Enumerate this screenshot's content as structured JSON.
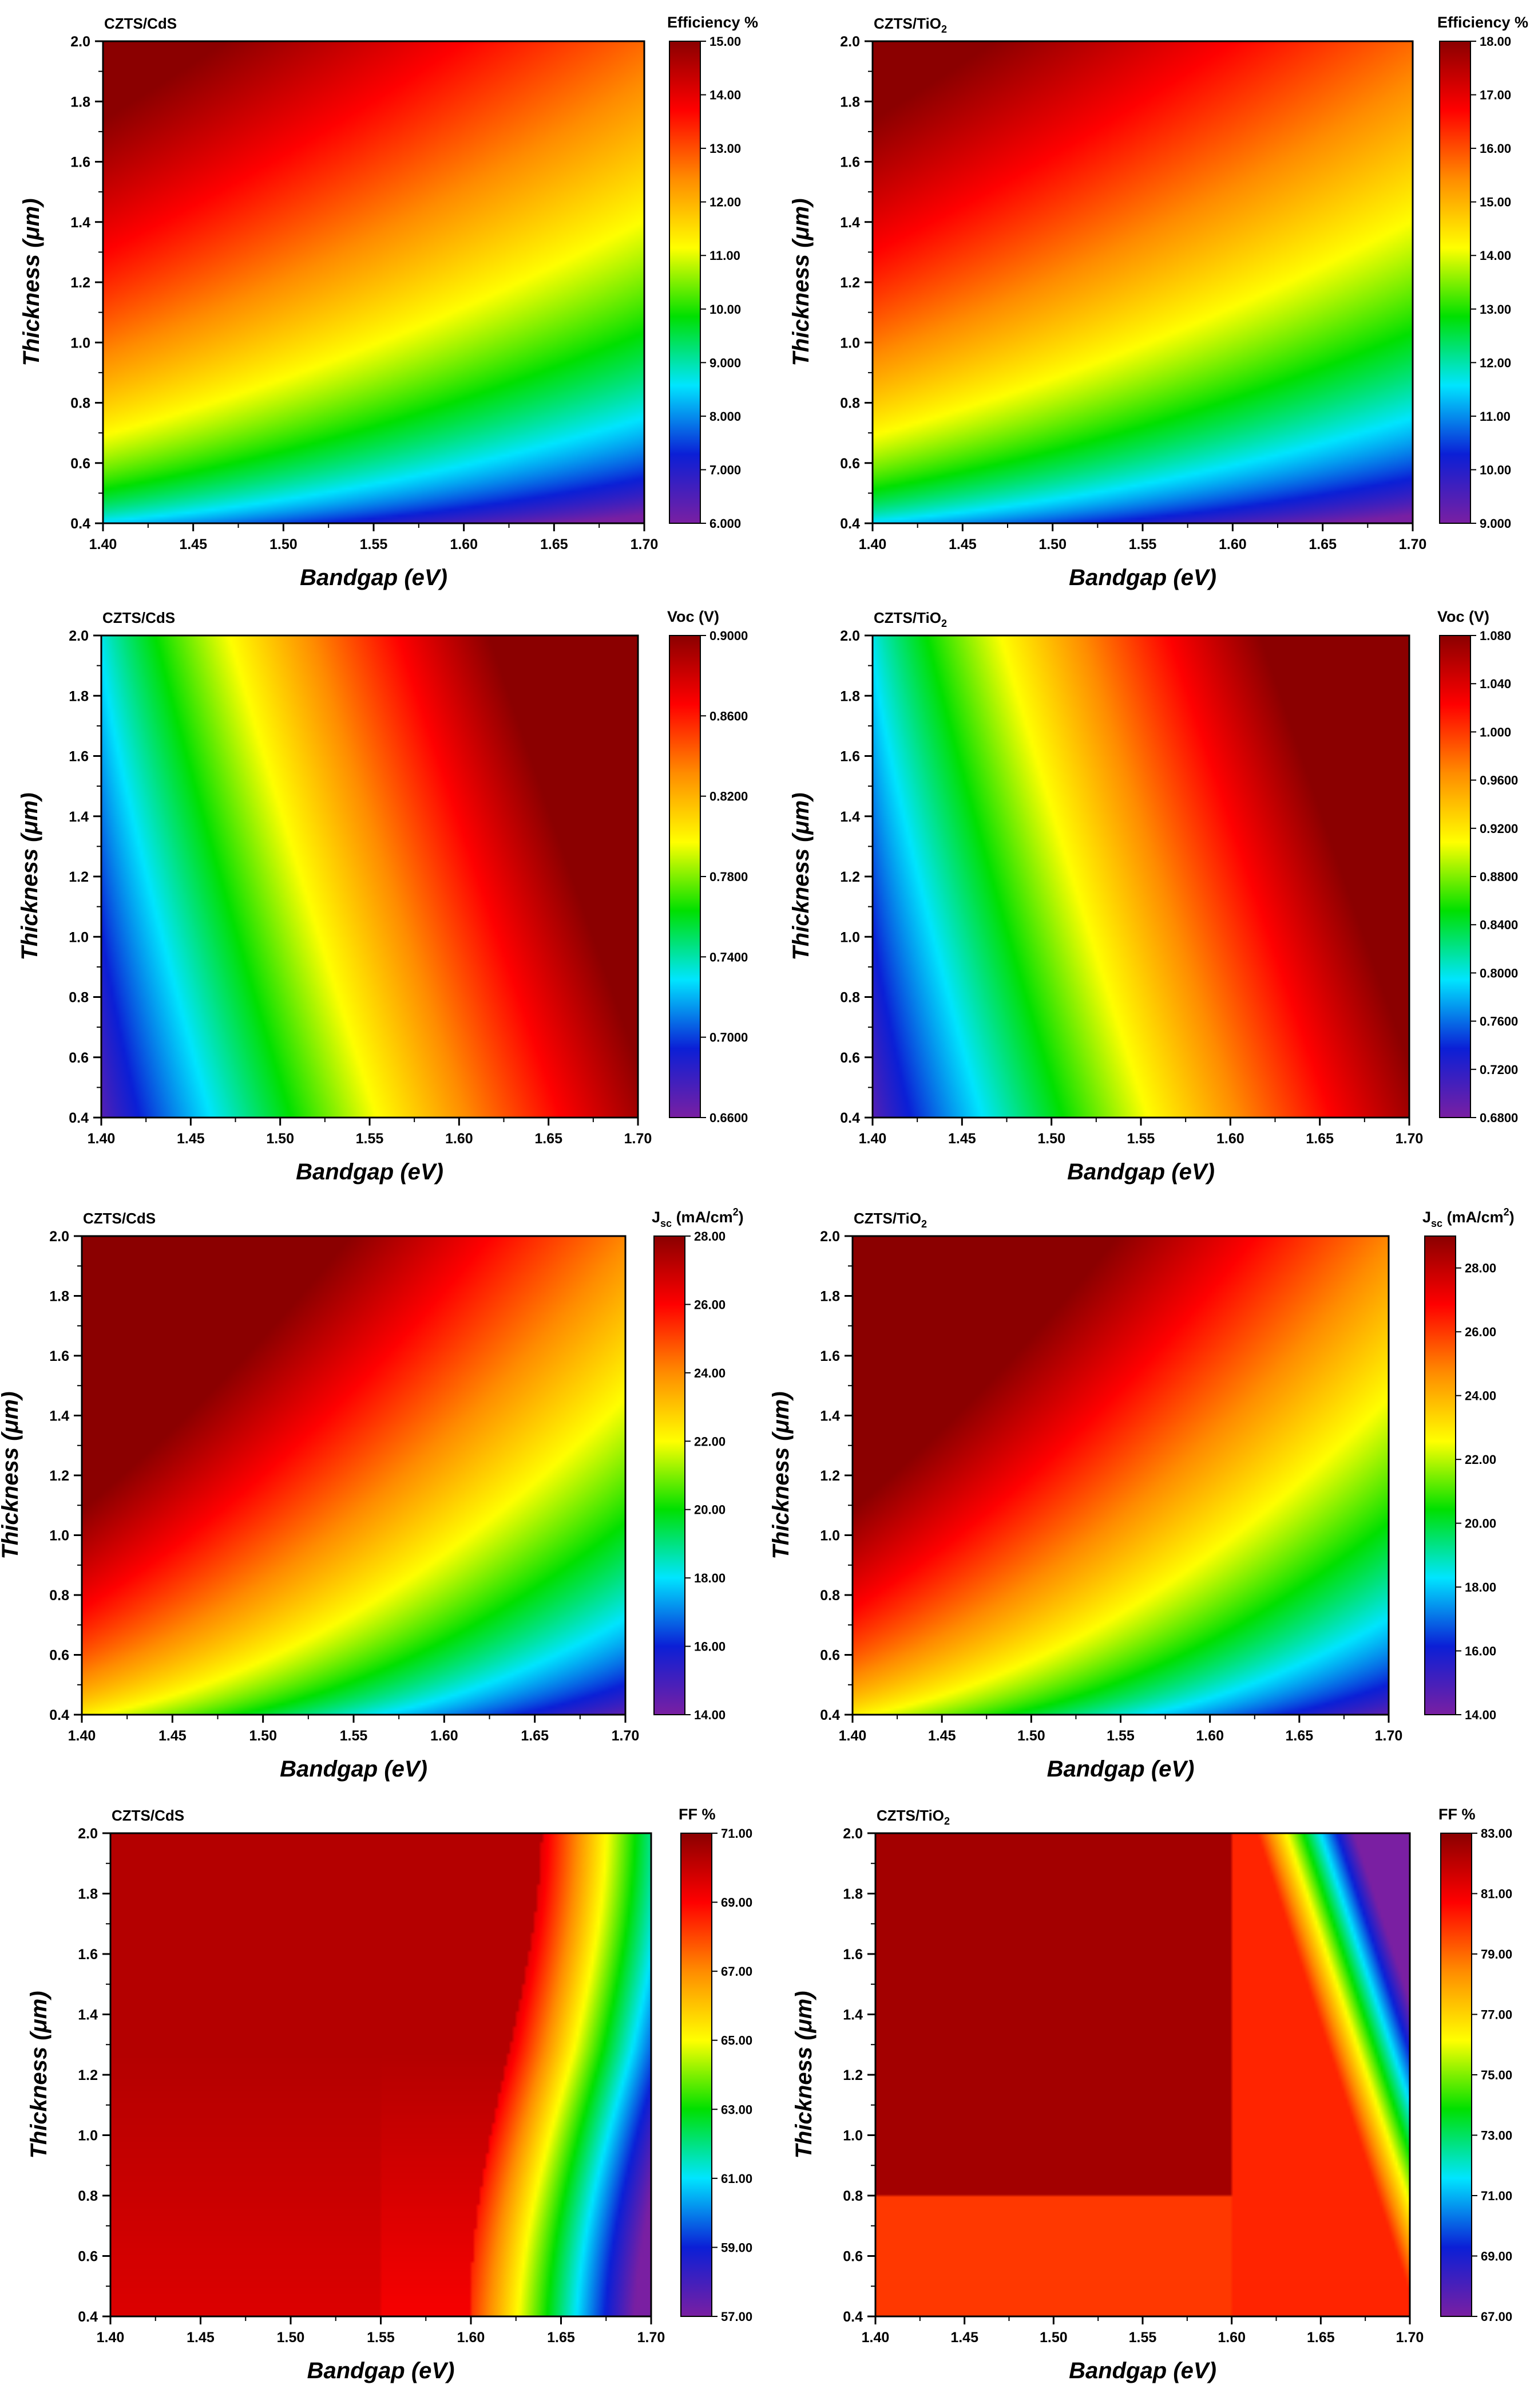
{
  "figure": {
    "colormap": [
      "#7a1fa2",
      "#0b1fd6",
      "#00e5ff",
      "#00e000",
      "#ffff00",
      "#ff8c00",
      "#ff0000",
      "#8b0000"
    ]
  },
  "chart_data": [
    {
      "type": "heatmap",
      "title": "CZTS/CdS",
      "title_sub": "",
      "xlabel": "Bandgap (eV)",
      "ylabel": "Thickness (μm)",
      "x_range": [
        1.4,
        1.7
      ],
      "y_range": [
        0.4,
        2.0
      ],
      "x_ticks": [
        "1.40",
        "1.45",
        "1.50",
        "1.55",
        "1.60",
        "1.65",
        "1.70"
      ],
      "y_ticks": [
        "0.4",
        "0.6",
        "0.8",
        "1.0",
        "1.2",
        "1.4",
        "1.6",
        "1.8",
        "2.0"
      ],
      "colorbar": {
        "title": "Efficiency %",
        "sub": "",
        "sup": "",
        "range": [
          6.0,
          15.0
        ],
        "ticks": [
          "6.000",
          "7.000",
          "8.000",
          "9.000",
          "10.00",
          "11.00",
          "12.00",
          "13.00",
          "14.00",
          "15.00"
        ]
      },
      "field": "eff"
    },
    {
      "type": "heatmap",
      "title": "CZTS/TiO",
      "title_sub": "2",
      "xlabel": "Bandgap (eV)",
      "ylabel": "Thickness (μm)",
      "x_range": [
        1.4,
        1.7
      ],
      "y_range": [
        0.4,
        2.0
      ],
      "x_ticks": [
        "1.40",
        "1.45",
        "1.50",
        "1.55",
        "1.60",
        "1.65",
        "1.70"
      ],
      "y_ticks": [
        "0.4",
        "0.6",
        "0.8",
        "1.0",
        "1.2",
        "1.4",
        "1.6",
        "1.8",
        "2.0"
      ],
      "colorbar": {
        "title": "Efficiency %",
        "sub": "",
        "sup": "",
        "range": [
          9.0,
          18.0
        ],
        "ticks": [
          "9.000",
          "10.00",
          "11.00",
          "12.00",
          "13.00",
          "14.00",
          "15.00",
          "16.00",
          "17.00",
          "18.00"
        ]
      },
      "field": "eff"
    },
    {
      "type": "heatmap",
      "title": "CZTS/CdS",
      "title_sub": "",
      "xlabel": "Bandgap (eV)",
      "ylabel": "Thickness (μm)",
      "x_range": [
        1.4,
        1.7
      ],
      "y_range": [
        0.4,
        2.0
      ],
      "x_ticks": [
        "1.40",
        "1.45",
        "1.50",
        "1.55",
        "1.60",
        "1.65",
        "1.70"
      ],
      "y_ticks": [
        "0.4",
        "0.6",
        "0.8",
        "1.0",
        "1.2",
        "1.4",
        "1.6",
        "1.8",
        "2.0"
      ],
      "colorbar": {
        "title": "Voc (V)",
        "sub": "",
        "sup": "",
        "range": [
          0.66,
          0.9
        ],
        "ticks": [
          "0.6600",
          "0.7000",
          "0.7400",
          "0.7800",
          "0.8200",
          "0.8600",
          "0.9000"
        ]
      },
      "field": "voc"
    },
    {
      "type": "heatmap",
      "title": "CZTS/TiO",
      "title_sub": "2",
      "xlabel": "Bandgap (eV)",
      "ylabel": "Thickness (μm)",
      "x_range": [
        1.4,
        1.7
      ],
      "y_range": [
        0.4,
        2.0
      ],
      "x_ticks": [
        "1.40",
        "1.45",
        "1.50",
        "1.55",
        "1.60",
        "1.65",
        "1.70"
      ],
      "y_ticks": [
        "0.4",
        "0.6",
        "0.8",
        "1.0",
        "1.2",
        "1.4",
        "1.6",
        "1.8",
        "2.0"
      ],
      "colorbar": {
        "title": "Voc (V)",
        "sub": "",
        "sup": "",
        "range": [
          0.68,
          1.08
        ],
        "ticks": [
          "0.6800",
          "0.7200",
          "0.7600",
          "0.8000",
          "0.8400",
          "0.8800",
          "0.9200",
          "0.9600",
          "1.000",
          "1.040",
          "1.080"
        ]
      },
      "field": "voc"
    },
    {
      "type": "heatmap",
      "title": "CZTS/CdS",
      "title_sub": "",
      "xlabel": "Bandgap (eV)",
      "ylabel": "Thickness (μm)",
      "x_range": [
        1.4,
        1.7
      ],
      "y_range": [
        0.4,
        2.0
      ],
      "x_ticks": [
        "1.40",
        "1.45",
        "1.50",
        "1.55",
        "1.60",
        "1.65",
        "1.70"
      ],
      "y_ticks": [
        "0.4",
        "0.6",
        "0.8",
        "1.0",
        "1.2",
        "1.4",
        "1.6",
        "1.8",
        "2.0"
      ],
      "colorbar": {
        "title": "J",
        "sub": "sc",
        "sup": "2",
        "title_tail": " (mA/cm",
        "title_end": ")",
        "range": [
          14.0,
          28.0
        ],
        "ticks": [
          "14.00",
          "16.00",
          "18.00",
          "20.00",
          "22.00",
          "24.00",
          "26.00",
          "28.00"
        ]
      },
      "field": "jsc"
    },
    {
      "type": "heatmap",
      "title": "CZTS/TiO",
      "title_sub": "2",
      "xlabel": "Bandgap (eV)",
      "ylabel": "Thickness (μm)",
      "x_range": [
        1.4,
        1.7
      ],
      "y_range": [
        0.4,
        2.0
      ],
      "x_ticks": [
        "1.40",
        "1.45",
        "1.50",
        "1.55",
        "1.60",
        "1.65",
        "1.70"
      ],
      "y_ticks": [
        "0.4",
        "0.6",
        "0.8",
        "1.0",
        "1.2",
        "1.4",
        "1.6",
        "1.8",
        "2.0"
      ],
      "colorbar": {
        "title": "J",
        "sub": "sc",
        "sup": "2",
        "title_tail": " (mA/cm",
        "title_end": ")",
        "range": [
          14.0,
          29.0
        ],
        "ticks": [
          "14.00",
          "16.00",
          "18.00",
          "20.00",
          "22.00",
          "24.00",
          "26.00",
          "28.00"
        ]
      },
      "field": "jsc"
    },
    {
      "type": "heatmap",
      "title": "CZTS/CdS",
      "title_sub": "",
      "xlabel": "Bandgap (eV)",
      "ylabel": "Thickness (μm)",
      "x_range": [
        1.4,
        1.7
      ],
      "y_range": [
        0.4,
        2.0
      ],
      "x_ticks": [
        "1.40",
        "1.45",
        "1.50",
        "1.55",
        "1.60",
        "1.65",
        "1.70"
      ],
      "y_ticks": [
        "0.4",
        "0.6",
        "0.8",
        "1.0",
        "1.2",
        "1.4",
        "1.6",
        "1.8",
        "2.0"
      ],
      "colorbar": {
        "title": "FF %",
        "sub": "",
        "sup": "",
        "range": [
          57.0,
          71.0
        ],
        "ticks": [
          "57.00",
          "59.00",
          "61.00",
          "63.00",
          "65.00",
          "67.00",
          "69.00",
          "71.00"
        ]
      },
      "field": "ff_cds"
    },
    {
      "type": "heatmap",
      "title": "CZTS/TiO",
      "title_sub": "2",
      "xlabel": "Bandgap (eV)",
      "ylabel": "Thickness (μm)",
      "x_range": [
        1.4,
        1.7
      ],
      "y_range": [
        0.4,
        2.0
      ],
      "x_ticks": [
        "1.40",
        "1.45",
        "1.50",
        "1.55",
        "1.60",
        "1.65",
        "1.70"
      ],
      "y_ticks": [
        "0.4",
        "0.6",
        "0.8",
        "1.0",
        "1.2",
        "1.4",
        "1.6",
        "1.8",
        "2.0"
      ],
      "colorbar": {
        "title": "FF %",
        "sub": "",
        "sup": "",
        "range": [
          67.0,
          83.0
        ],
        "ticks": [
          "67.00",
          "69.00",
          "71.00",
          "73.00",
          "75.00",
          "77.00",
          "79.00",
          "81.00",
          "83.00"
        ]
      },
      "field": "ff_tio2"
    }
  ]
}
